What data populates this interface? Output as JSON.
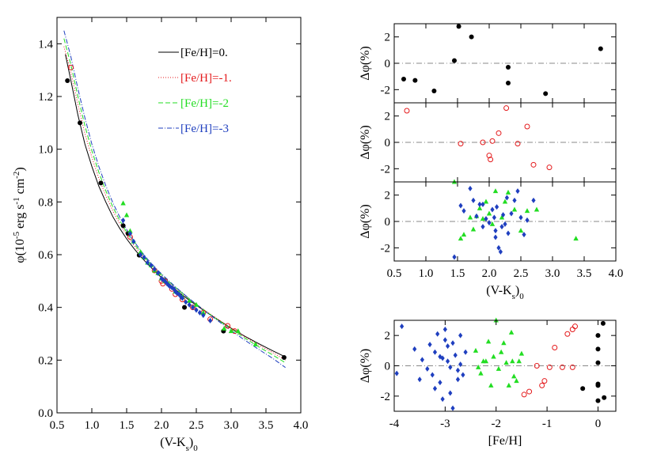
{
  "colors": {
    "fe0": "#000000",
    "fe1": "#e41a1c",
    "fe2": "#22dd22",
    "fe3": "#1f3fbf",
    "refline": "#888888"
  },
  "chart_data": [
    {
      "id": "main",
      "type": "scatter",
      "xlabel": "(V-K_s)_0",
      "ylabel": "φ(10^-5 erg s^-1 cm^-2)",
      "xlim": [
        0.5,
        4.0
      ],
      "ylim": [
        0.0,
        1.5
      ],
      "xticks": [
        "0.5",
        "1.0",
        "1.5",
        "2.0",
        "2.5",
        "3.0",
        "3.5",
        "4.0"
      ],
      "yticks": [
        "0.0",
        "0.2",
        "0.4",
        "0.6",
        "0.8",
        "1.0",
        "1.2",
        "1.4"
      ],
      "legend": {
        "placement": "top-right",
        "entries": [
          {
            "label": "[Fe/H]=0.",
            "color": "fe0",
            "dash": ""
          },
          {
            "label": "[Fe/H]=-1.",
            "color": "fe1",
            "dash": "1,2"
          },
          {
            "label": "[Fe/H]=-2",
            "color": "fe2",
            "dash": "6,3"
          },
          {
            "label": "[Fe/H]=-3",
            "color": "fe3",
            "dash": "6,2,1,2"
          }
        ]
      },
      "curves": [
        {
          "name": "[Fe/H]=0.",
          "color": "fe0",
          "dash": "",
          "points": [
            [
              0.62,
              1.36
            ],
            [
              0.7,
              1.26
            ],
            [
              0.8,
              1.13
            ],
            [
              0.9,
              1.02
            ],
            [
              1.0,
              0.935
            ],
            [
              1.1,
              0.86
            ],
            [
              1.2,
              0.8
            ],
            [
              1.3,
              0.745
            ],
            [
              1.4,
              0.7
            ],
            [
              1.5,
              0.66
            ],
            [
              1.6,
              0.625
            ],
            [
              1.7,
              0.593
            ],
            [
              1.8,
              0.565
            ],
            [
              1.9,
              0.538
            ],
            [
              2.0,
              0.513
            ],
            [
              2.1,
              0.49
            ],
            [
              2.2,
              0.468
            ],
            [
              2.3,
              0.447
            ],
            [
              2.4,
              0.427
            ],
            [
              2.5,
              0.408
            ],
            [
              2.6,
              0.39
            ],
            [
              2.7,
              0.372
            ],
            [
              2.8,
              0.355
            ],
            [
              2.9,
              0.338
            ],
            [
              3.0,
              0.321
            ],
            [
              3.2,
              0.29
            ],
            [
              3.4,
              0.262
            ],
            [
              3.6,
              0.235
            ],
            [
              3.78,
              0.212
            ]
          ]
        },
        {
          "name": "[Fe/H]=-1.",
          "color": "fe1",
          "dash": "1,2",
          "points": [
            [
              0.6,
              1.39
            ],
            [
              0.7,
              1.29
            ],
            [
              0.8,
              1.17
            ],
            [
              0.9,
              1.06
            ],
            [
              1.0,
              0.97
            ],
            [
              1.1,
              0.89
            ],
            [
              1.2,
              0.825
            ],
            [
              1.3,
              0.767
            ],
            [
              1.4,
              0.718
            ],
            [
              1.5,
              0.675
            ],
            [
              1.6,
              0.637
            ],
            [
              1.7,
              0.603
            ],
            [
              1.8,
              0.573
            ],
            [
              1.9,
              0.545
            ],
            [
              2.0,
              0.52
            ],
            [
              2.2,
              0.474
            ],
            [
              2.4,
              0.432
            ],
            [
              2.6,
              0.393
            ],
            [
              2.8,
              0.357
            ],
            [
              3.0,
              0.322
            ],
            [
              3.2,
              0.288
            ],
            [
              3.4,
              0.257
            ],
            [
              3.6,
              0.228
            ],
            [
              3.78,
              0.2
            ]
          ]
        },
        {
          "name": "[Fe/H]=-2",
          "color": "fe2",
          "dash": "6,3",
          "points": [
            [
              0.6,
              1.42
            ],
            [
              0.7,
              1.32
            ],
            [
              0.8,
              1.2
            ],
            [
              0.9,
              1.09
            ],
            [
              1.0,
              0.995
            ],
            [
              1.1,
              0.913
            ],
            [
              1.2,
              0.843
            ],
            [
              1.3,
              0.782
            ],
            [
              1.4,
              0.73
            ],
            [
              1.5,
              0.685
            ],
            [
              1.6,
              0.645
            ],
            [
              1.7,
              0.61
            ],
            [
              1.8,
              0.578
            ],
            [
              1.9,
              0.55
            ],
            [
              2.0,
              0.524
            ],
            [
              2.2,
              0.476
            ],
            [
              2.4,
              0.432
            ],
            [
              2.6,
              0.392
            ],
            [
              2.8,
              0.354
            ],
            [
              3.0,
              0.318
            ],
            [
              3.2,
              0.283
            ],
            [
              3.4,
              0.25
            ],
            [
              3.6,
              0.219
            ],
            [
              3.78,
              0.19
            ]
          ]
        },
        {
          "name": "[Fe/H]=-3",
          "color": "fe3",
          "dash": "6,2,1,2",
          "points": [
            [
              0.6,
              1.45
            ],
            [
              0.7,
              1.35
            ],
            [
              0.8,
              1.23
            ],
            [
              0.9,
              1.12
            ],
            [
              1.0,
              1.02
            ],
            [
              1.1,
              0.935
            ],
            [
              1.2,
              0.862
            ],
            [
              1.3,
              0.798
            ],
            [
              1.4,
              0.743
            ],
            [
              1.5,
              0.695
            ],
            [
              1.6,
              0.653
            ],
            [
              1.7,
              0.616
            ],
            [
              1.8,
              0.583
            ],
            [
              1.9,
              0.554
            ],
            [
              2.0,
              0.527
            ],
            [
              2.2,
              0.478
            ],
            [
              2.4,
              0.433
            ],
            [
              2.6,
              0.391
            ],
            [
              2.8,
              0.351
            ],
            [
              3.0,
              0.312
            ],
            [
              3.2,
              0.275
            ],
            [
              3.4,
              0.24
            ],
            [
              3.6,
              0.206
            ],
            [
              3.78,
              0.172
            ]
          ]
        }
      ],
      "points": [
        {
          "name": "[Fe/H]=0.",
          "color": "fe0",
          "marker": "dot",
          "x": [
            0.65,
            0.83,
            1.13,
            1.45,
            1.52,
            1.68,
            2.33,
            2.89,
            3.76
          ],
          "y": [
            1.26,
            1.1,
            0.872,
            0.71,
            0.68,
            0.598,
            0.4,
            0.31,
            0.21
          ]
        },
        {
          "name": "[Fe/H]=-1.",
          "color": "fe1",
          "marker": "circle",
          "x": [
            0.7,
            1.55,
            1.9,
            2.0,
            2.02,
            2.05,
            2.15,
            2.2,
            2.3,
            2.45,
            2.6,
            2.7,
            2.95,
            3.05
          ],
          "y": [
            1.31,
            0.667,
            0.54,
            0.5,
            0.49,
            0.5,
            0.47,
            0.45,
            0.43,
            0.4,
            0.38,
            0.355,
            0.33,
            0.31
          ]
        },
        {
          "name": "[Fe/H]=-2",
          "color": "fe2",
          "marker": "triangle",
          "x": [
            1.45,
            1.5,
            1.55,
            1.6,
            1.7,
            1.75,
            1.8,
            1.85,
            1.9,
            1.95,
            2.0,
            2.05,
            2.1,
            2.2,
            2.25,
            2.3,
            2.4,
            2.5,
            2.6,
            2.9,
            3.0,
            3.1,
            3.35
          ],
          "y": [
            0.795,
            0.75,
            0.69,
            0.65,
            0.61,
            0.59,
            0.57,
            0.56,
            0.54,
            0.53,
            0.51,
            0.5,
            0.49,
            0.46,
            0.455,
            0.44,
            0.425,
            0.41,
            0.38,
            0.32,
            0.31,
            0.31,
            0.26
          ]
        },
        {
          "name": "[Fe/H]=-3",
          "color": "fe3",
          "marker": "diamond",
          "x": [
            1.45,
            1.55,
            1.6,
            1.7,
            1.75,
            1.8,
            1.85,
            1.9,
            1.95,
            2.0,
            2.02,
            2.05,
            2.08,
            2.1,
            2.12,
            2.15,
            2.18,
            2.2,
            2.22,
            2.25,
            2.28,
            2.3,
            2.35,
            2.4,
            2.45,
            2.5,
            2.55,
            2.6,
            2.7
          ],
          "y": [
            0.73,
            0.68,
            0.65,
            0.6,
            0.59,
            0.57,
            0.56,
            0.545,
            0.53,
            0.51,
            0.505,
            0.5,
            0.49,
            0.485,
            0.48,
            0.475,
            0.47,
            0.46,
            0.455,
            0.45,
            0.44,
            0.435,
            0.42,
            0.41,
            0.4,
            0.39,
            0.38,
            0.37,
            0.35
          ]
        }
      ]
    },
    {
      "id": "res0",
      "type": "scatter",
      "ylabel": "Δφ(%)",
      "xlim": [
        0.5,
        4.0
      ],
      "ylim": [
        -3,
        3
      ],
      "yticks": [
        "-2",
        "0",
        "2"
      ],
      "refline": 0,
      "points": [
        {
          "name": "[Fe/H]=0.",
          "color": "fe0",
          "marker": "dot",
          "x": [
            0.65,
            0.83,
            1.13,
            1.45,
            1.52,
            1.72,
            2.3,
            2.3,
            2.89,
            3.76
          ],
          "y": [
            -1.2,
            -1.3,
            -2.1,
            0.2,
            2.8,
            2.0,
            -0.3,
            -1.5,
            -2.3,
            1.1
          ]
        }
      ]
    },
    {
      "id": "res1",
      "type": "scatter",
      "ylabel": "Δφ(%)",
      "xlim": [
        0.5,
        4.0
      ],
      "ylim": [
        -3,
        3
      ],
      "yticks": [
        "-2",
        "0",
        "2"
      ],
      "refline": 0,
      "points": [
        {
          "name": "[Fe/H]=-1.",
          "color": "fe1",
          "marker": "circle",
          "x": [
            0.7,
            1.55,
            1.9,
            2.0,
            2.02,
            2.05,
            2.15,
            2.27,
            2.45,
            2.6,
            2.7,
            2.95
          ],
          "y": [
            2.4,
            -0.1,
            0.0,
            -1.0,
            -1.3,
            0.1,
            0.7,
            2.6,
            -0.1,
            1.2,
            -1.7,
            -1.9
          ]
        }
      ]
    },
    {
      "id": "res2",
      "type": "scatter",
      "ylabel": "Δφ(%)",
      "xlabel": "(V-K_s)_0",
      "xlim": [
        0.5,
        4.0
      ],
      "ylim": [
        -3,
        3
      ],
      "xticks": [
        "0.5",
        "1.0",
        "1.5",
        "2.0",
        "2.5",
        "3.0",
        "3.5",
        "4.0"
      ],
      "yticks": [
        "-2",
        "0",
        "2"
      ],
      "refline": 0,
      "points": [
        {
          "name": "[Fe/H]=-2",
          "color": "fe2",
          "marker": "triangle",
          "x": [
            1.45,
            1.55,
            1.6,
            1.7,
            1.75,
            1.8,
            1.85,
            1.9,
            1.95,
            2.0,
            2.05,
            2.1,
            2.2,
            2.25,
            2.3,
            2.4,
            2.5,
            2.6,
            2.75,
            3.37
          ],
          "y": [
            3.0,
            -1.3,
            -1.0,
            0.3,
            -0.6,
            0.4,
            1.0,
            0.2,
            1.5,
            0.6,
            -0.2,
            2.3,
            0.3,
            1.5,
            2.2,
            0.9,
            -0.7,
            0.8,
            0.9,
            -1.3
          ]
        },
        {
          "name": "[Fe/H]=-3",
          "color": "fe3",
          "marker": "diamond",
          "x": [
            1.45,
            1.55,
            1.6,
            1.7,
            1.75,
            1.8,
            1.85,
            1.9,
            1.95,
            2.0,
            2.05,
            2.08,
            2.1,
            2.12,
            2.15,
            2.18,
            2.2,
            2.22,
            2.25,
            2.28,
            2.3,
            2.35,
            2.4,
            2.45,
            2.5,
            2.55,
            2.6,
            2.7,
            1.9,
            2.1
          ],
          "y": [
            -2.7,
            1.2,
            0.8,
            2.5,
            1.6,
            0.4,
            1.3,
            -0.4,
            0.2,
            -0.1,
            0.9,
            0.3,
            -0.7,
            1.1,
            -2.0,
            -2.3,
            -0.4,
            0.5,
            -0.2,
            1.8,
            -0.9,
            0.6,
            1.6,
            2.3,
            0.3,
            -1.0,
            0.1,
            1.6,
            1.3,
            -1.2
          ]
        }
      ]
    },
    {
      "id": "resfeh",
      "type": "scatter",
      "ylabel": "Δφ(%)",
      "xlabel": "[Fe/H]",
      "xlim": [
        -4.0,
        0.35
      ],
      "ylim": [
        -3,
        3
      ],
      "xticks": [
        "-4",
        "-3",
        "-2",
        "-1",
        "0"
      ],
      "yticks": [
        "-2",
        "0",
        "2"
      ],
      "refline": 0,
      "points": [
        {
          "name": "[Fe/H]=0.",
          "color": "fe0",
          "marker": "dot",
          "x": [
            0.1,
            0.0,
            0.0,
            0.0,
            0.0,
            0.0,
            0.0,
            0.12,
            -0.3
          ],
          "y": [
            2.8,
            2.0,
            1.1,
            0.2,
            -1.2,
            -1.3,
            -2.3,
            -2.1,
            -1.5
          ]
        },
        {
          "name": "[Fe/H]=-1.",
          "color": "fe1",
          "marker": "circle",
          "x": [
            -0.5,
            -0.45,
            -0.6,
            -0.7,
            -0.85,
            -0.95,
            -1.05,
            -1.1,
            -1.2,
            -1.35,
            -1.45,
            -0.5
          ],
          "y": [
            2.4,
            2.6,
            2.1,
            -0.1,
            1.2,
            -0.1,
            -1.0,
            -1.3,
            0.0,
            -1.7,
            -1.9,
            -0.1
          ]
        },
        {
          "name": "[Fe/H]=-2",
          "color": "fe2",
          "marker": "triangle",
          "x": [
            -2.4,
            -2.3,
            -2.2,
            -2.1,
            -2.05,
            -2.0,
            -1.95,
            -1.9,
            -1.85,
            -1.8,
            -1.7,
            -1.65,
            -1.6,
            -1.55,
            -1.5,
            -2.35,
            -2.25,
            -2.15,
            -1.75,
            -1.68
          ],
          "y": [
            1.0,
            -0.5,
            0.3,
            -1.3,
            0.6,
            3.0,
            -0.2,
            0.9,
            1.5,
            0.2,
            2.2,
            -0.7,
            -1.0,
            0.3,
            0.8,
            -0.1,
            0.3,
            1.6,
            -1.3,
            0.3
          ]
        },
        {
          "name": "[Fe/H]=-3",
          "color": "fe3",
          "marker": "diamond",
          "x": [
            -3.85,
            -3.95,
            -3.6,
            -3.5,
            -3.45,
            -3.3,
            -3.25,
            -3.2,
            -3.15,
            -3.1,
            -3.05,
            -3.0,
            -2.95,
            -2.9,
            -2.85,
            -2.8,
            -2.75,
            -2.7,
            -2.65,
            -2.6,
            -3.35,
            -3.2,
            -3.05,
            -2.95,
            -2.85,
            -2.75,
            -2.7,
            -3.1,
            -2.9,
            -3.0
          ],
          "y": [
            2.6,
            -0.5,
            1.1,
            -0.9,
            0.4,
            1.4,
            -0.6,
            0.9,
            2.1,
            -1.1,
            0.5,
            2.4,
            1.3,
            -1.8,
            -2.8,
            0.7,
            -0.3,
            0.1,
            -0.6,
            0.9,
            -0.2,
            -1.5,
            -2.2,
            0.3,
            1.5,
            -0.9,
            2.0,
            0.6,
            -0.1,
            1.7
          ]
        }
      ]
    }
  ]
}
